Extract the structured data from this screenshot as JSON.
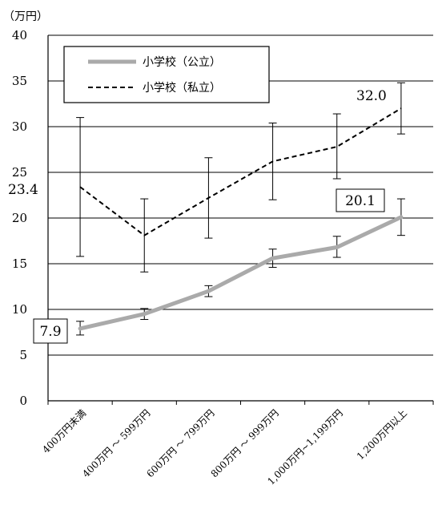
{
  "chart_data": {
    "type": "line",
    "unit_label": "（万円）",
    "categories": [
      "400万円未満",
      "400万円 ～ 599万円",
      "600万円 ～ 799万円",
      "800万円 ～ 999万円",
      "1,000万円~1,199万円",
      "1,200万円以上"
    ],
    "ylim": [
      0,
      40
    ],
    "yticks": [
      0,
      5,
      10,
      15,
      20,
      25,
      30,
      35,
      40
    ],
    "grid": true,
    "legend_position": "top-left",
    "series": [
      {
        "name": "小学校（公立）",
        "style": "solid",
        "color": "#aaaaaa",
        "values": [
          7.9,
          9.5,
          12.0,
          15.6,
          16.8,
          20.1
        ],
        "error_low": [
          7.2,
          8.9,
          11.4,
          14.6,
          15.7,
          18.1
        ],
        "error_high": [
          8.7,
          10.1,
          12.6,
          16.6,
          18.0,
          22.1
        ]
      },
      {
        "name": "小学校（私立）",
        "style": "dashed",
        "color": "#000000",
        "values": [
          23.4,
          18.1,
          22.2,
          26.2,
          27.8,
          32.0
        ],
        "error_low": [
          15.8,
          14.1,
          17.8,
          22.0,
          24.3,
          29.2
        ],
        "error_high": [
          31.0,
          22.1,
          26.6,
          30.4,
          31.4,
          34.8
        ]
      }
    ],
    "data_labels": [
      {
        "text": "7.9",
        "series": 0,
        "index": 0,
        "boxed": true
      },
      {
        "text": "20.1",
        "series": 0,
        "index": 5,
        "boxed": true
      },
      {
        "text": "23.4",
        "series": 1,
        "index": 0,
        "boxed": false
      },
      {
        "text": "32.0",
        "series": 1,
        "index": 5,
        "boxed": false
      }
    ]
  }
}
